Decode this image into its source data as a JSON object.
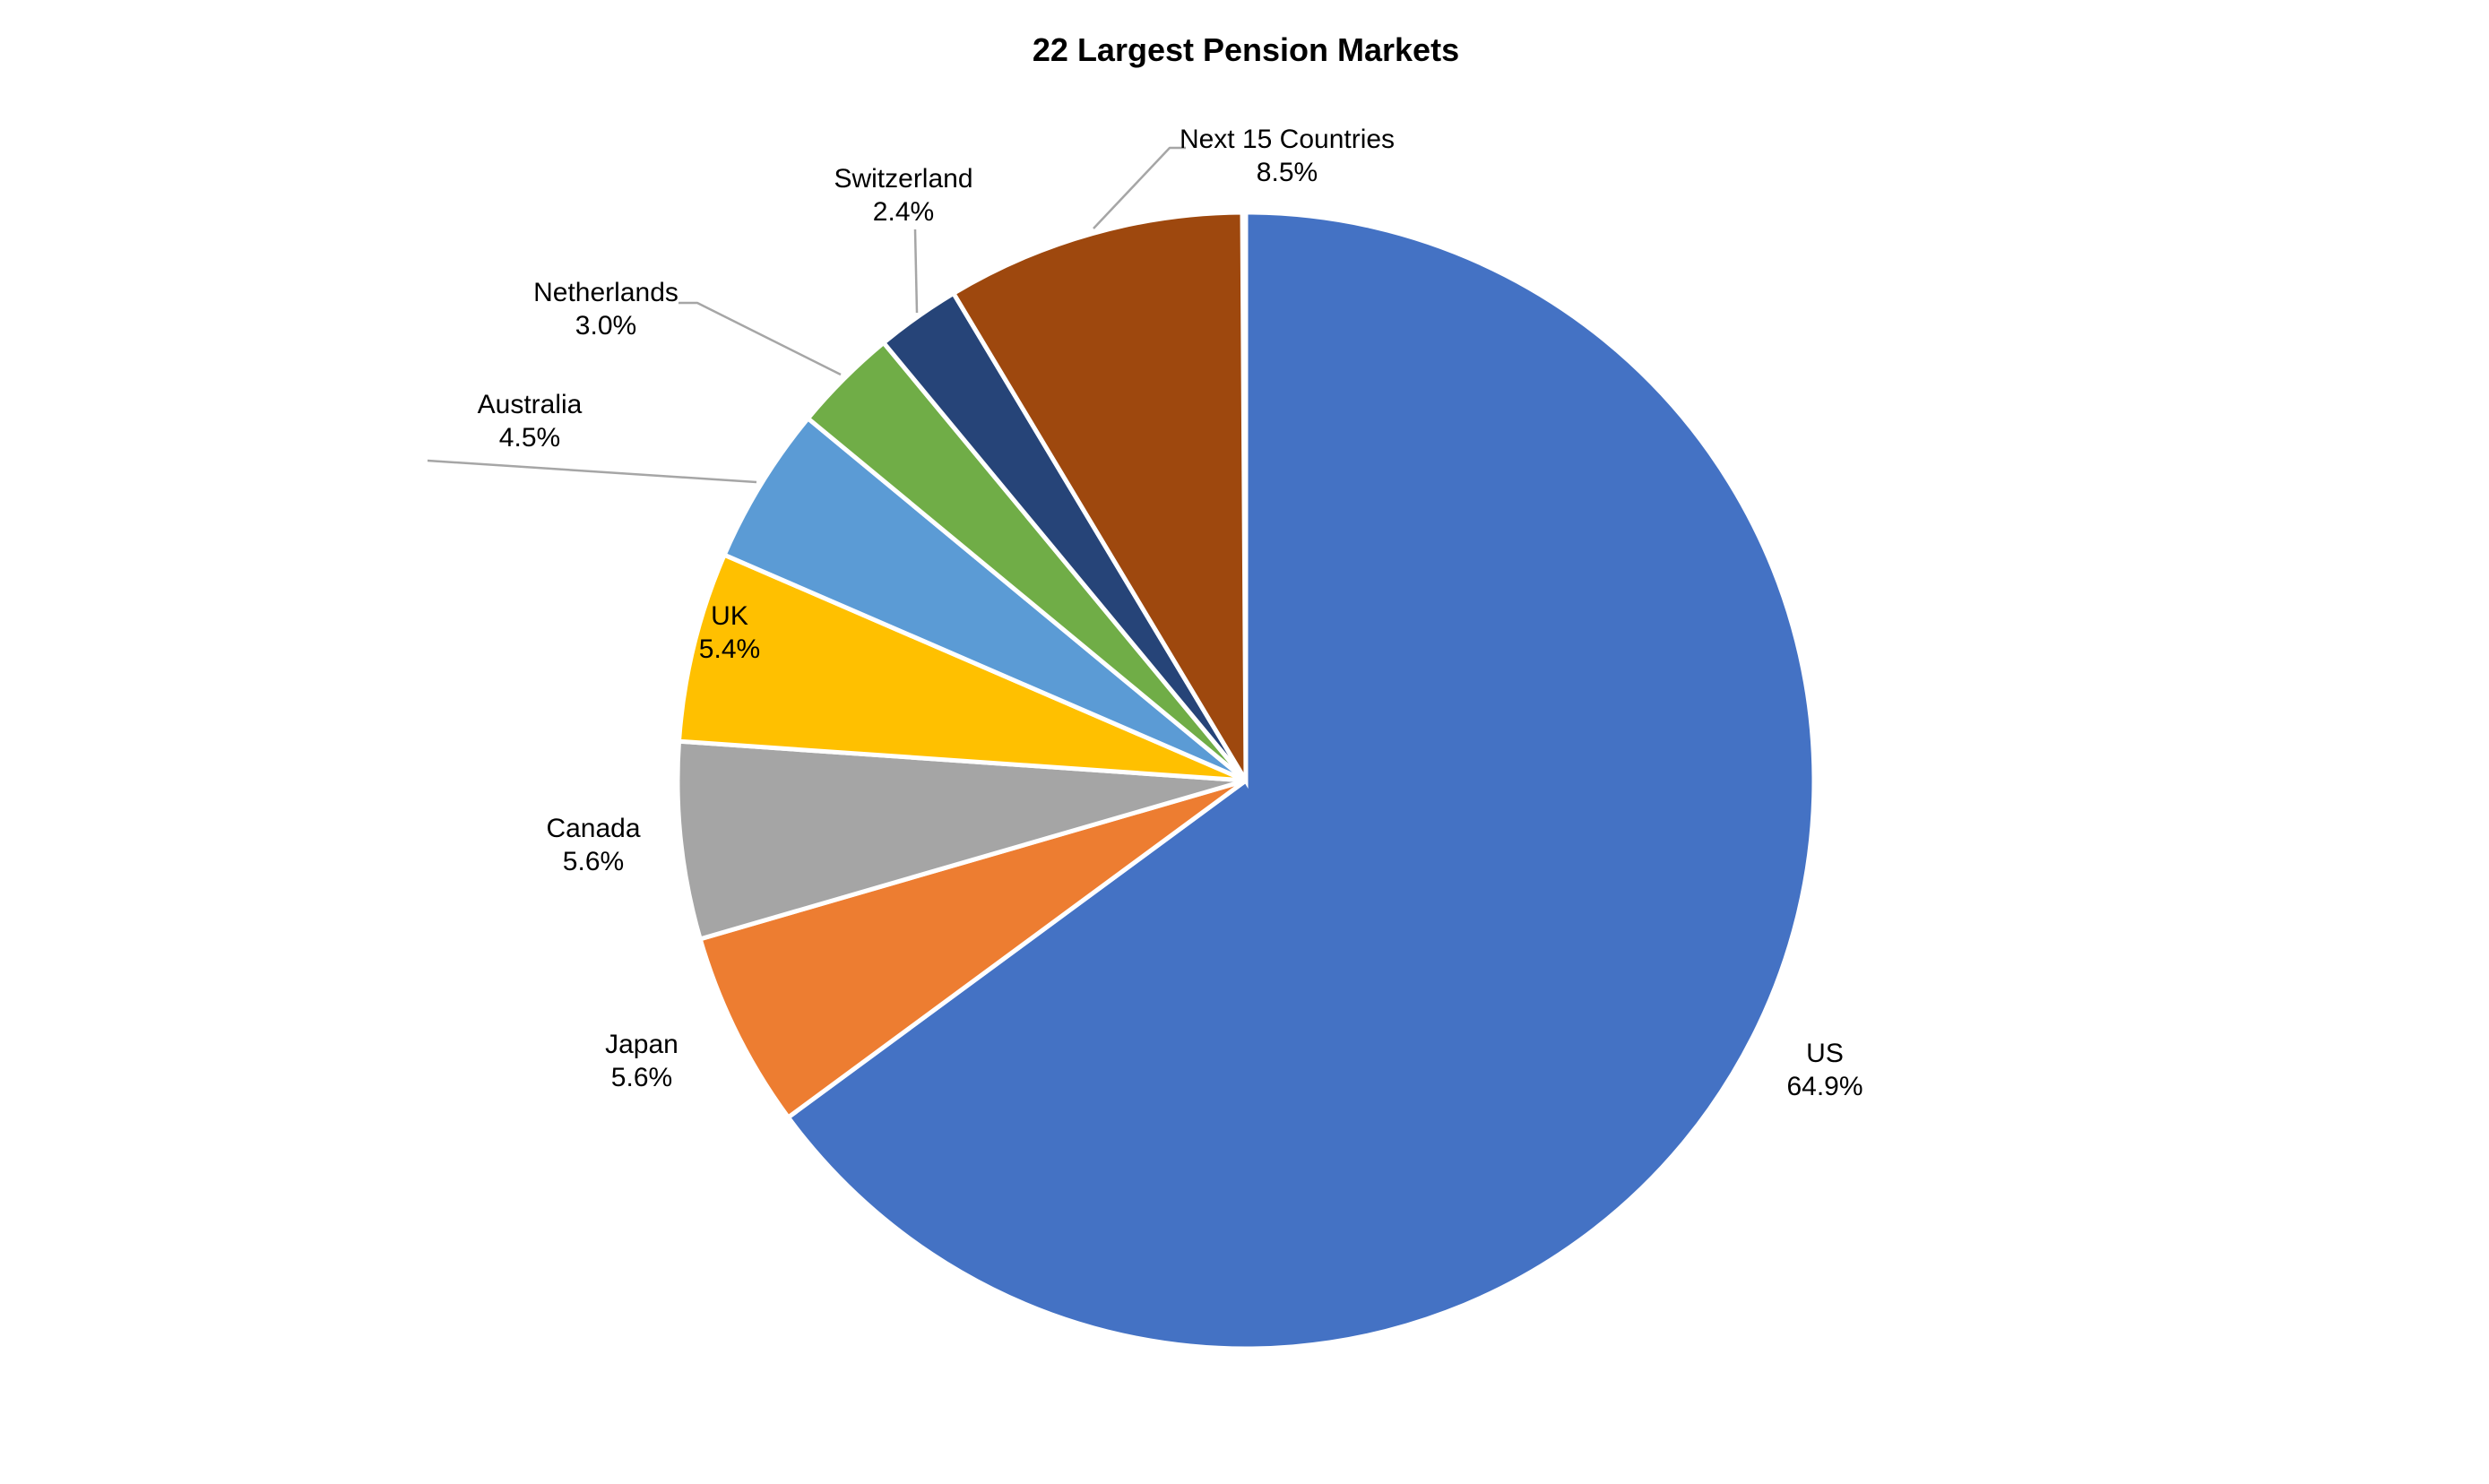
{
  "title": "22 Largest Pension Markets",
  "background_color": "#FFFFFF",
  "leader_line_color": "#A6A6A6",
  "slice_border_color": "#FFFFFF",
  "chart_data": {
    "type": "pie",
    "title": "22 Largest Pension Markets",
    "start_angle_deg": 0,
    "direction": "clockwise",
    "legend": "none",
    "label_format": "category name + percentage, outside end",
    "slices": [
      {
        "label": "US",
        "value_pct": 64.9,
        "display": "64.9%",
        "color": "#4472C4"
      },
      {
        "label": "Japan",
        "value_pct": 5.6,
        "display": "5.6%",
        "color": "#ED7D31"
      },
      {
        "label": "Canada",
        "value_pct": 5.6,
        "display": "5.6%",
        "color": "#A5A5A5"
      },
      {
        "label": "UK",
        "value_pct": 5.4,
        "display": "5.4%",
        "color": "#FFC000"
      },
      {
        "label": "Australia",
        "value_pct": 4.5,
        "display": "4.5%",
        "color": "#5B9BD5"
      },
      {
        "label": "Netherlands",
        "value_pct": 3.0,
        "display": "3.0%",
        "color": "#70AD47"
      },
      {
        "label": "Switzerland",
        "value_pct": 2.4,
        "display": "2.4%",
        "color": "#264478"
      },
      {
        "label": "Next 15 Countries",
        "value_pct": 8.5,
        "display": "8.5%",
        "color": "#9E480E"
      }
    ]
  }
}
